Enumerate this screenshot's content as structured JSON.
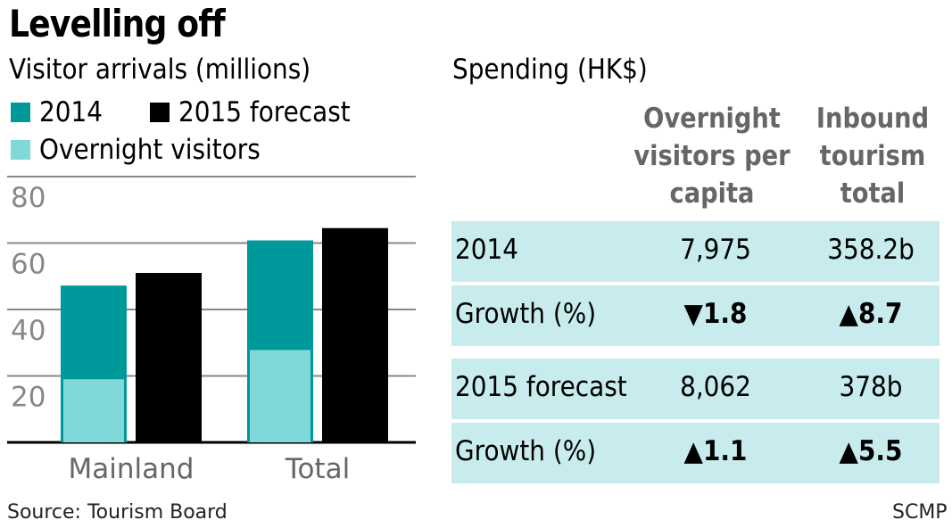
{
  "title": "Levelling off",
  "left_subtitle": "Visitor arrivals (millions)",
  "right_subtitle": "Spending (HK$)",
  "legend": [
    {
      "label": "2014",
      "color": "#00999b"
    },
    {
      "label": "2015 forecast",
      "color": "#000000"
    },
    {
      "label": "Overnight visitors",
      "color": "#80d8d8"
    }
  ],
  "chart_data": {
    "type": "bar",
    "categories": [
      "Mainland",
      "Total"
    ],
    "series": [
      {
        "name": "2014",
        "values": [
          47.2,
          60.8
        ],
        "color": "#00999b"
      },
      {
        "name": "2015 forecast",
        "values": [
          51.0,
          64.5
        ],
        "color": "#000000"
      },
      {
        "name": "Overnight visitors",
        "values": [
          19.0,
          27.8
        ],
        "color": "#80d8d8"
      }
    ],
    "yticks": [
      20,
      40,
      60,
      80
    ],
    "ylim": [
      0,
      80
    ],
    "grid": true
  },
  "table": {
    "columns": [
      "Overnight visitors per capita",
      "Inbound tourism total"
    ],
    "rows": [
      {
        "label": "2014",
        "values": [
          "7,975",
          "358.2b"
        ],
        "bold": false
      },
      {
        "label": "Growth (%)",
        "values": [
          "▼1.8",
          "▲8.7"
        ],
        "bold": true
      },
      {
        "label": "2015 forecast",
        "values": [
          "8,062",
          "378b"
        ],
        "bold": false
      },
      {
        "label": "Growth (%)",
        "values": [
          "▲1.1",
          "▲5.5"
        ],
        "bold": true
      }
    ]
  },
  "source": "Source: Tourism Board",
  "credit": "SCMP"
}
